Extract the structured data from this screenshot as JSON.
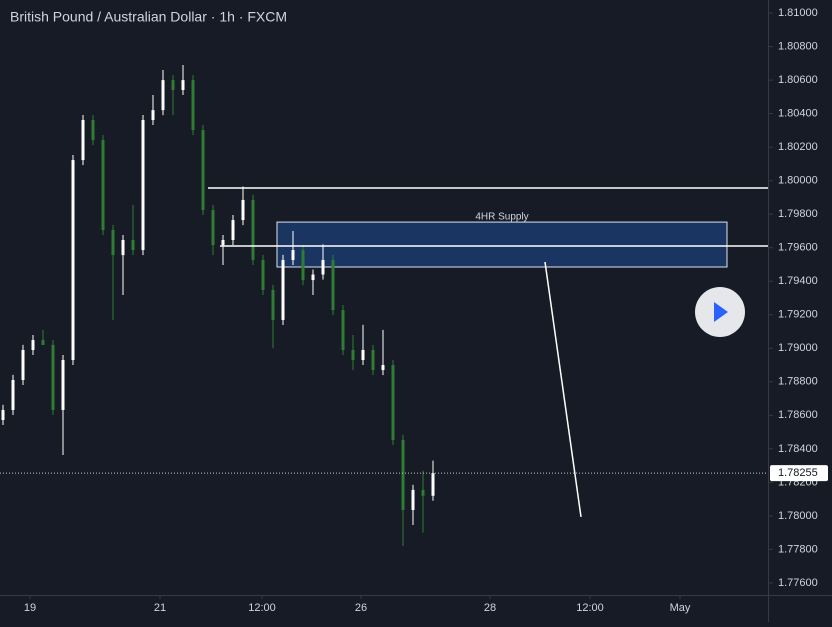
{
  "chart_data": {
    "type": "candlestick",
    "title": "British Pound / Australian Dollar · 1h · FXCM",
    "x": [
      0,
      1,
      2,
      3,
      4,
      5,
      6,
      7,
      8,
      9,
      10,
      11,
      12,
      13,
      14,
      15,
      16,
      17,
      18,
      19,
      20,
      21,
      22,
      23,
      24,
      25,
      26,
      27,
      28,
      29,
      30,
      31,
      32,
      33,
      34,
      35,
      36,
      37,
      38,
      39,
      40,
      41,
      42,
      43
    ],
    "open": [
      1.78572,
      1.78632,
      1.78811,
      1.7899,
      1.79049,
      1.7902,
      1.78632,
      1.7893,
      1.80123,
      1.80362,
      1.80242,
      1.79706,
      1.79556,
      1.79646,
      1.79586,
      1.80362,
      1.80421,
      1.806,
      1.80541,
      1.806,
      1.80302,
      1.79825,
      1.79616,
      1.79646,
      1.79765,
      1.79885,
      1.79527,
      1.79348,
      1.79169,
      1.79527,
      1.79586,
      1.79407,
      1.7944,
      1.79527,
      1.79228,
      1.7899,
      1.7893,
      1.7899,
      1.7887,
      1.789,
      1.78453,
      1.78035,
      1.78155,
      1.7812
    ],
    "high": [
      1.78662,
      1.78841,
      1.7902,
      1.79079,
      1.79109,
      1.7905,
      1.7896,
      1.80153,
      1.80392,
      1.80392,
      1.80272,
      1.79736,
      1.79676,
      1.79855,
      1.80392,
      1.80511,
      1.8066,
      1.8063,
      1.8069,
      1.8063,
      1.80332,
      1.79855,
      1.79676,
      1.79795,
      1.79965,
      1.79915,
      1.79557,
      1.79378,
      1.79557,
      1.797,
      1.79616,
      1.7947,
      1.7962,
      1.79557,
      1.79258,
      1.79079,
      1.7914,
      1.7902,
      1.7911,
      1.7893,
      1.78483,
      1.78185,
      1.7827,
      1.7833
    ],
    "low": [
      1.78542,
      1.78602,
      1.78781,
      1.7896,
      1.79019,
      1.78602,
      1.78363,
      1.789,
      1.80093,
      1.80212,
      1.79676,
      1.79169,
      1.79318,
      1.79556,
      1.79556,
      1.80332,
      1.80391,
      1.80391,
      1.80511,
      1.80272,
      1.79795,
      1.79556,
      1.79497,
      1.79616,
      1.79735,
      1.79497,
      1.79318,
      1.79,
      1.79139,
      1.79497,
      1.79377,
      1.79318,
      1.7941,
      1.79198,
      1.7896,
      1.7887,
      1.789,
      1.7884,
      1.7884,
      1.78423,
      1.7782,
      1.77946,
      1.779,
      1.7809
    ],
    "close": [
      1.78632,
      1.78811,
      1.7899,
      1.79049,
      1.7902,
      1.78632,
      1.7893,
      1.80123,
      1.80362,
      1.80242,
      1.79706,
      1.79556,
      1.79646,
      1.79586,
      1.80362,
      1.80421,
      1.806,
      1.80541,
      1.806,
      1.80302,
      1.79825,
      1.79616,
      1.79646,
      1.79765,
      1.79885,
      1.79527,
      1.79348,
      1.79169,
      1.79527,
      1.79586,
      1.79407,
      1.7944,
      1.79527,
      1.79228,
      1.7899,
      1.7893,
      1.7899,
      1.7887,
      1.789,
      1.78453,
      1.78035,
      1.78155,
      1.7812,
      1.78255
    ],
    "up_color": "#ffffff",
    "down_color": "#2e7d32",
    "xlim": [
      -0.3,
      76.5
    ],
    "xticks": [
      {
        "value": 2.7,
        "label": "19"
      },
      {
        "value": 15.7,
        "label": "21"
      },
      {
        "value": 25.9,
        "label": "12:00"
      },
      {
        "value": 35.8,
        "label": "26"
      },
      {
        "value": 48.7,
        "label": "28"
      },
      {
        "value": 58.7,
        "label": "12:00"
      },
      {
        "value": 67.7,
        "label": "May"
      }
    ],
    "ylim": [
      1.77528,
      1.81078
    ],
    "yticks": [
      {
        "value": 1.81,
        "label": "1.81000"
      },
      {
        "value": 1.808,
        "label": "1.80800"
      },
      {
        "value": 1.806,
        "label": "1.80600"
      },
      {
        "value": 1.804,
        "label": "1.80400"
      },
      {
        "value": 1.802,
        "label": "1.80200"
      },
      {
        "value": 1.8,
        "label": "1.80000"
      },
      {
        "value": 1.798,
        "label": "1.79800"
      },
      {
        "value": 1.796,
        "label": "1.79600"
      },
      {
        "value": 1.794,
        "label": "1.79400"
      },
      {
        "value": 1.792,
        "label": "1.79200"
      },
      {
        "value": 1.79,
        "label": "1.79000"
      },
      {
        "value": 1.788,
        "label": "1.78800"
      },
      {
        "value": 1.786,
        "label": "1.78600"
      },
      {
        "value": 1.784,
        "label": "1.78400"
      },
      {
        "value": 1.782,
        "label": "1.78200"
      },
      {
        "value": 1.78,
        "label": "1.78000"
      },
      {
        "value": 1.778,
        "label": "1.77800"
      },
      {
        "value": 1.776,
        "label": "1.77600"
      }
    ],
    "levels": [
      {
        "value": 1.79956,
        "x_start": 20.5
      },
      {
        "value": 1.7961,
        "x_start": 21.7
      }
    ],
    "zone": {
      "label": "4HR Supply",
      "low": 1.79485,
      "high": 1.79753,
      "x_start": 27.4,
      "x_end": 72.4
    },
    "arrow": {
      "x": [
        54.2,
        57.8
      ],
      "y": [
        1.79515,
        1.77994
      ]
    },
    "last_price": {
      "value": 1.78255,
      "label": "1.78255"
    }
  }
}
